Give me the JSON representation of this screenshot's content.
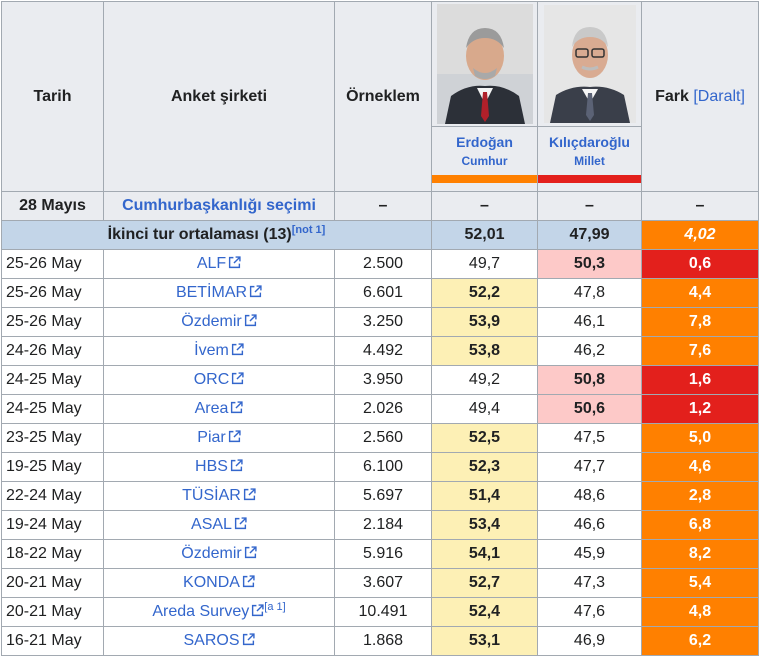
{
  "headers": {
    "date": "Tarih",
    "firm": "Anket şirketi",
    "sample": "Örneklem",
    "diff": "Fark",
    "diff_toggle_open": "[",
    "diff_toggle_label": "Daralt",
    "diff_toggle_close": "]"
  },
  "candidates": [
    {
      "name": "Erdoğan",
      "party": "Cumhur",
      "color": "#ff8000"
    },
    {
      "name": "Kılıçdaroğlu",
      "party": "Millet",
      "color": "#e3201c"
    }
  ],
  "election": {
    "date": "28 Mayıs",
    "label": "Cumhurbaşkanlığı seçimi",
    "sample": "–",
    "erdogan": "–",
    "kilicdaroglu": "–",
    "diff": "–"
  },
  "average": {
    "label": "İkinci tur ortalaması (13)",
    "note": "[not 1]",
    "erdogan": "52,01",
    "kilicdaroglu": "47,99",
    "diff": "4,02"
  },
  "colors": {
    "erdogan_lead_cell": "#fdf0b5",
    "kilicdaroglu_lead_cell": "#fdc9c8",
    "erdogan_diff": "#ff8000",
    "kilicdaroglu_diff": "#e3201c",
    "average_row": "#c3d5e8",
    "link": "#3366cc"
  },
  "rows": [
    {
      "date": "25-26 May",
      "firm": "ALF",
      "note": "",
      "sample": "2.500",
      "erdogan": "49,7",
      "kilicdaroglu": "50,3",
      "diff": "0,6",
      "leader": "kilicdaroglu",
      "big": false
    },
    {
      "date": "25-26 May",
      "firm": "BETİMAR",
      "note": "",
      "sample": "6.601",
      "erdogan": "52,2",
      "kilicdaroglu": "47,8",
      "diff": "4,4",
      "leader": "erdogan",
      "big": false
    },
    {
      "date": "25-26 May",
      "firm": "Özdemir",
      "note": "",
      "sample": "3.250",
      "erdogan": "53,9",
      "kilicdaroglu": "46,1",
      "diff": "7,8",
      "leader": "erdogan",
      "big": false
    },
    {
      "date": "24-26 May",
      "firm": "İvem",
      "note": "",
      "sample": "4.492",
      "erdogan": "53,8",
      "kilicdaroglu": "46,2",
      "diff": "7,6",
      "leader": "erdogan",
      "big": false
    },
    {
      "date": "24-25 May",
      "firm": "ORC",
      "note": "",
      "sample": "3.950",
      "erdogan": "49,2",
      "kilicdaroglu": "50,8",
      "diff": "1,6",
      "leader": "kilicdaroglu",
      "big": false
    },
    {
      "date": "24-25 May",
      "firm": "Area",
      "note": "",
      "sample": "2.026",
      "erdogan": "49,4",
      "kilicdaroglu": "50,6",
      "diff": "1,2",
      "leader": "kilicdaroglu",
      "big": false
    },
    {
      "date": "23-25 May",
      "firm": "Piar",
      "note": "",
      "sample": "2.560",
      "erdogan": "52,5",
      "kilicdaroglu": "47,5",
      "diff": "5,0",
      "leader": "erdogan",
      "big": false
    },
    {
      "date": "19-25 May",
      "firm": "HBS",
      "note": "",
      "sample": "6.100",
      "erdogan": "52,3",
      "kilicdaroglu": "47,7",
      "diff": "4,6",
      "leader": "erdogan",
      "big": false
    },
    {
      "date": "22-24 May",
      "firm": "TÜSİAR",
      "note": "",
      "sample": "5.697",
      "erdogan": "51,4",
      "kilicdaroglu": "48,6",
      "diff": "2,8",
      "leader": "erdogan",
      "big": false
    },
    {
      "date": "19-24 May",
      "firm": "ASAL",
      "note": "",
      "sample": "2.184",
      "erdogan": "53,4",
      "kilicdaroglu": "46,6",
      "diff": "6,8",
      "leader": "erdogan",
      "big": false
    },
    {
      "date": "18-22 May",
      "firm": "Özdemir",
      "note": "",
      "sample": "5.916",
      "erdogan": "54,1",
      "kilicdaroglu": "45,9",
      "diff": "8,2",
      "leader": "erdogan",
      "big": true
    },
    {
      "date": "20-21 May",
      "firm": "KONDA",
      "note": "",
      "sample": "3.607",
      "erdogan": "52,7",
      "kilicdaroglu": "47,3",
      "diff": "5,4",
      "leader": "erdogan",
      "big": true
    },
    {
      "date": "20-21 May",
      "firm": "Areda Survey",
      "note": "[a 1]",
      "sample": "10.491",
      "erdogan": "52,4",
      "kilicdaroglu": "47,6",
      "diff": "4,8",
      "leader": "erdogan",
      "big": true
    },
    {
      "date": "16-21 May",
      "firm": "SAROS",
      "note": "",
      "sample": "1.868",
      "erdogan": "53,1",
      "kilicdaroglu": "46,9",
      "diff": "6,2",
      "leader": "erdogan",
      "big": true
    }
  ]
}
